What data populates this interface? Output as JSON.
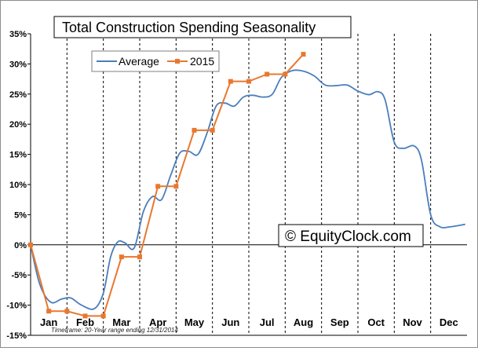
{
  "chart_data": {
    "type": "line",
    "title": "Total Construction Spending Seasonality",
    "xlabel": "",
    "ylabel": "",
    "ylim": [
      -15,
      35
    ],
    "y_ticks": [
      "35%",
      "30%",
      "25%",
      "20%",
      "15%",
      "10%",
      "5%",
      "0%",
      "-5%",
      "-10%",
      "-15%"
    ],
    "categories": [
      "Jan",
      "Feb",
      "Mar",
      "Apr",
      "May",
      "Jun",
      "Jul",
      "Aug",
      "Sep",
      "Oct",
      "Nov",
      "Dec"
    ],
    "grid": "vertical dashed lines between months",
    "legend_position": "top-left",
    "series": [
      {
        "name": "Average",
        "color": "#4a7ebb",
        "points": [
          [
            0.0,
            0.0
          ],
          [
            0.25,
            -6.5
          ],
          [
            0.55,
            -9.5
          ],
          [
            0.85,
            -9.0
          ],
          [
            1.1,
            -8.8
          ],
          [
            1.4,
            -10.0
          ],
          [
            1.75,
            -10.6
          ],
          [
            2.0,
            -8.0
          ],
          [
            2.2,
            -2.0
          ],
          [
            2.4,
            0.5
          ],
          [
            2.6,
            0.3
          ],
          [
            2.85,
            -0.5
          ],
          [
            3.1,
            5.5
          ],
          [
            3.35,
            8.0
          ],
          [
            3.6,
            7.5
          ],
          [
            3.85,
            11.5
          ],
          [
            4.1,
            15.2
          ],
          [
            4.35,
            15.5
          ],
          [
            4.6,
            15.0
          ],
          [
            4.85,
            18.5
          ],
          [
            5.1,
            23.0
          ],
          [
            5.35,
            23.5
          ],
          [
            5.6,
            23.0
          ],
          [
            5.85,
            24.5
          ],
          [
            6.1,
            24.8
          ],
          [
            6.4,
            24.5
          ],
          [
            6.65,
            25.0
          ],
          [
            6.9,
            27.8
          ],
          [
            7.2,
            28.9
          ],
          [
            7.5,
            28.8
          ],
          [
            7.8,
            28.0
          ],
          [
            8.1,
            26.5
          ],
          [
            8.4,
            26.4
          ],
          [
            8.7,
            26.5
          ],
          [
            9.0,
            25.5
          ],
          [
            9.3,
            24.9
          ],
          [
            9.55,
            25.4
          ],
          [
            9.75,
            24.0
          ],
          [
            10.0,
            17.0
          ],
          [
            10.25,
            16.0
          ],
          [
            10.55,
            16.4
          ],
          [
            10.75,
            14.0
          ],
          [
            11.0,
            5.0
          ],
          [
            11.25,
            3.0
          ],
          [
            11.55,
            3.0
          ],
          [
            11.95,
            3.4
          ]
        ]
      },
      {
        "name": "2015",
        "color": "#e8782f",
        "points": [
          [
            0.0,
            0.0
          ],
          [
            0.5,
            -11.0
          ],
          [
            1.0,
            -11.0
          ],
          [
            1.5,
            -11.8
          ],
          [
            2.0,
            -11.8
          ],
          [
            2.5,
            -2.0
          ],
          [
            3.0,
            -2.0
          ],
          [
            3.5,
            9.7
          ],
          [
            4.0,
            9.7
          ],
          [
            4.5,
            19.0
          ],
          [
            5.0,
            19.0
          ],
          [
            5.5,
            27.1
          ],
          [
            6.0,
            27.1
          ],
          [
            6.5,
            28.3
          ],
          [
            7.0,
            28.3
          ],
          [
            7.5,
            31.6
          ]
        ]
      }
    ]
  },
  "watermark": "© EquityClock.com",
  "footnote": "Timeframe: 20-Year range ending 12/31/2014"
}
